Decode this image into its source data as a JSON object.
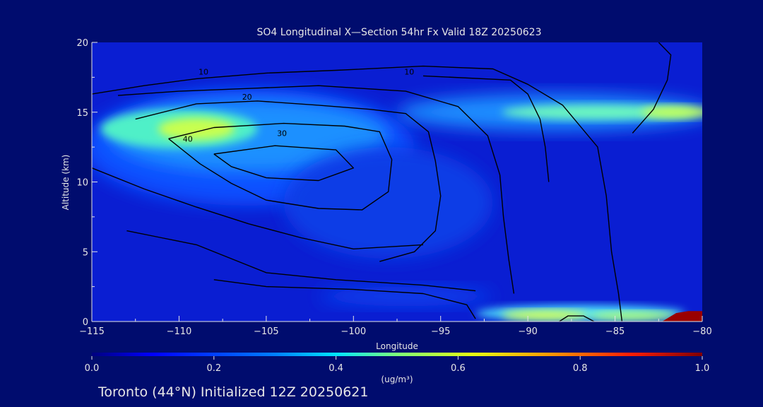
{
  "chart_data": {
    "type": "heatmap",
    "title": "SO4 Longitudinal X—Section 54hr  Fx Valid 18Z 20250623",
    "xlabel": "Longitude",
    "ylabel": "Altitude (km)",
    "xlim": [
      -115,
      -80
    ],
    "ylim": [
      0,
      20
    ],
    "x_ticks": [
      -115,
      -110,
      -105,
      -100,
      -95,
      -90,
      -85,
      -80
    ],
    "x_tick_labels": [
      "−115",
      "−110",
      "−105",
      "−100",
      "−95",
      "−90",
      "−85",
      "−80"
    ],
    "y_ticks": [
      0,
      5,
      10,
      15,
      20
    ],
    "y_tick_labels": [
      "0",
      "5",
      "10",
      "15",
      "20"
    ],
    "colorbar": {
      "label": "(ug/m³)",
      "min": 0.0,
      "max": 1.0,
      "ticks": [
        "0.0",
        "0.2",
        "0.4",
        "0.6",
        "0.8",
        "1.0"
      ]
    },
    "field_features": [
      {
        "name": "upper plume",
        "lon": [
          -114,
          -97
        ],
        "alt": [
          11,
          16
        ],
        "peak": 0.55
      },
      {
        "name": "eastern upper band",
        "lon": [
          -91,
          -80
        ],
        "alt": [
          14,
          16
        ],
        "peak": 0.45
      },
      {
        "name": "boundary layer",
        "lon": [
          -93,
          -80
        ],
        "alt": [
          0,
          1.2
        ],
        "peak": 0.6
      },
      {
        "name": "surface max",
        "lon": [
          -82,
          -80
        ],
        "alt": [
          0,
          0.8
        ],
        "peak": 1.0
      }
    ],
    "contours": [
      {
        "level": 10,
        "label": "10"
      },
      {
        "level": 20,
        "label": "20"
      },
      {
        "level": 30,
        "label": "30"
      },
      {
        "level": 40,
        "label": "40"
      }
    ],
    "grid": false
  },
  "footer": {
    "caption": "Toronto (44°N) Initialized 12Z 20250621"
  }
}
